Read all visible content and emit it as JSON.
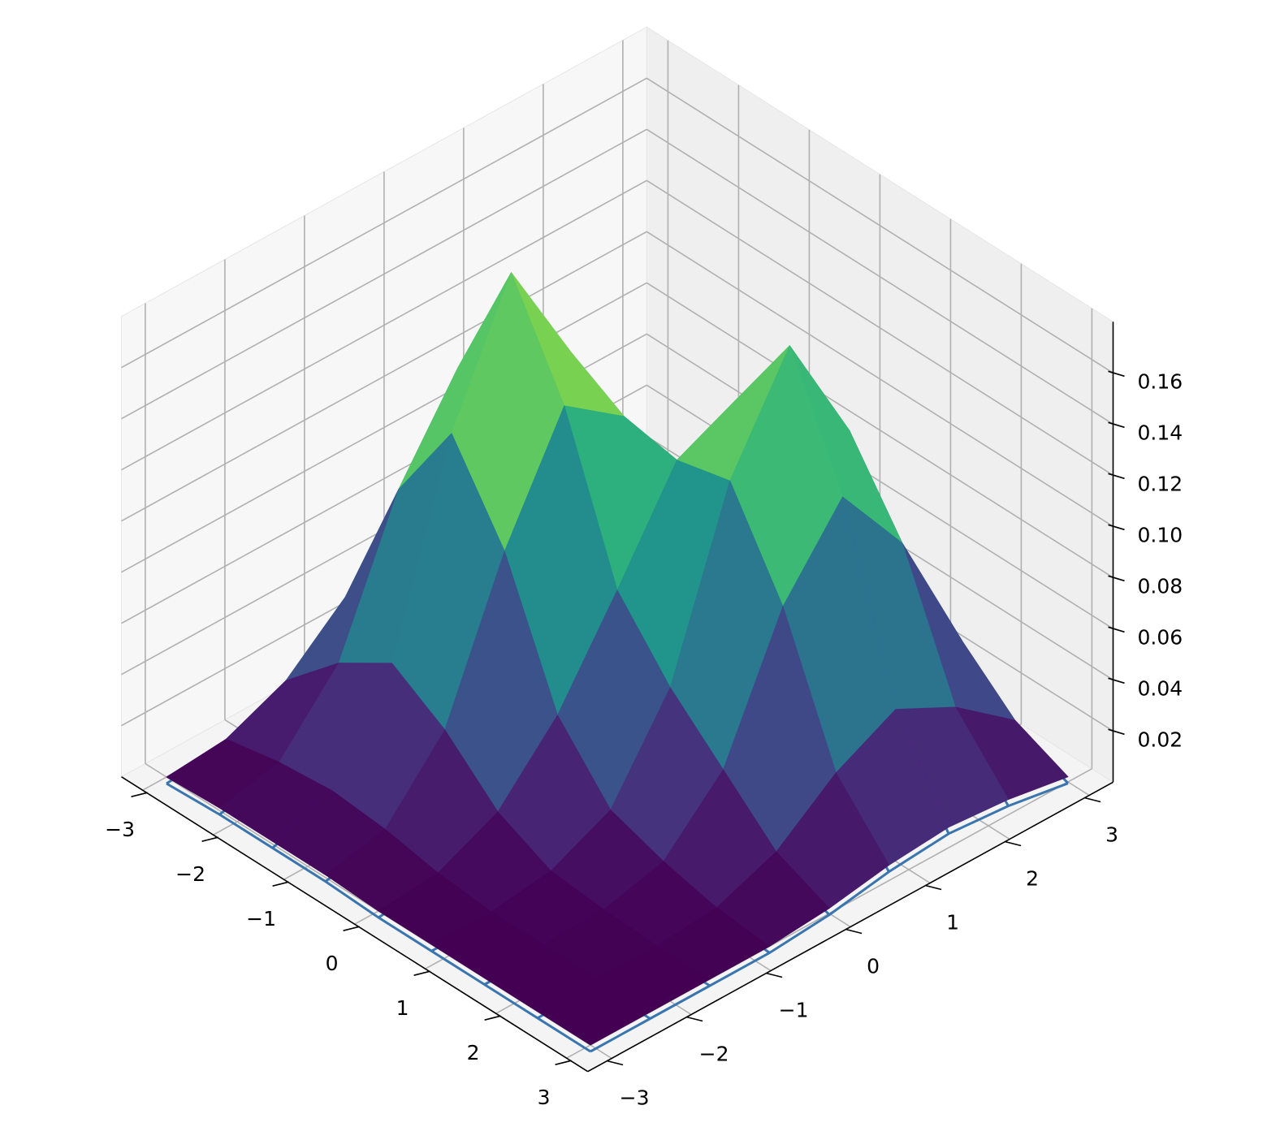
{
  "chart_data": {
    "type": "surface3d",
    "x": [
      -3,
      -2.25,
      -1.5,
      -0.75,
      0,
      0.75,
      1.5,
      2.25,
      3
    ],
    "y": [
      -3,
      -2.25,
      -1.5,
      -0.75,
      0,
      0.75,
      1.5,
      2.25,
      3
    ],
    "z": [
      [
        0.0,
        0.002,
        0.012,
        0.032,
        0.045,
        0.032,
        0.012,
        0.002,
        0.0
      ],
      [
        0.001,
        0.006,
        0.032,
        0.087,
        0.122,
        0.087,
        0.033,
        0.007,
        0.001
      ],
      [
        0.001,
        0.008,
        0.045,
        0.122,
        0.172,
        0.128,
        0.053,
        0.014,
        0.003
      ],
      [
        0.001,
        0.006,
        0.032,
        0.089,
        0.133,
        0.116,
        0.073,
        0.035,
        0.012
      ],
      [
        0.0,
        0.002,
        0.013,
        0.038,
        0.074,
        0.112,
        0.123,
        0.082,
        0.029
      ],
      [
        0.0,
        0.0,
        0.003,
        0.014,
        0.049,
        0.117,
        0.157,
        0.111,
        0.041
      ],
      [
        0.0,
        0.0,
        0.001,
        0.007,
        0.03,
        0.081,
        0.111,
        0.08,
        0.029
      ],
      [
        0.0,
        0.0,
        0.0,
        0.002,
        0.011,
        0.029,
        0.041,
        0.029,
        0.011
      ],
      [
        0.0,
        0.0,
        0.0,
        0.0,
        0.002,
        0.006,
        0.008,
        0.006,
        0.002
      ]
    ],
    "colormap": "viridis",
    "wireframe_color": "#3a75b0",
    "xlim": [
      -3.3,
      3.3
    ],
    "ylim": [
      -3.3,
      3.3
    ],
    "zlim": [
      0,
      0.18
    ],
    "xticks": [
      {
        "value": -3,
        "label": "−3"
      },
      {
        "value": -2,
        "label": "−2"
      },
      {
        "value": -1,
        "label": "−1"
      },
      0,
      1,
      2,
      3
    ],
    "yticks": [
      {
        "value": -3,
        "label": "−3"
      },
      {
        "value": -2,
        "label": "−2"
      },
      {
        "value": -1,
        "label": "−1"
      },
      0,
      1,
      2,
      3
    ],
    "zticks": [
      0.02,
      0.04,
      0.06,
      0.08,
      {
        "value": 0.1,
        "label": "0.10"
      },
      0.12,
      0.14,
      0.16
    ],
    "grid": true
  }
}
